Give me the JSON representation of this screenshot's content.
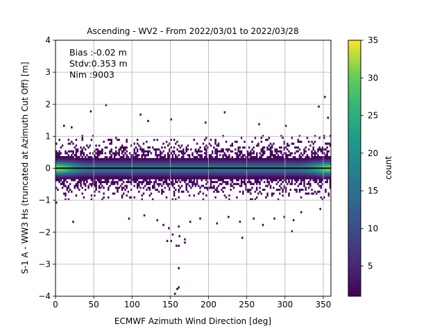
{
  "chart_data": {
    "type": "heatmap",
    "title": "Ascending - WV2 - From 2022/03/01 to 2022/03/28",
    "xlabel": "ECMWF Azimuth Wind Direction [deg]",
    "ylabel": "S-1 A - WW3 Hs (truncated at Azimuth Cut Off) [m]",
    "xlim": [
      0,
      360
    ],
    "ylim": [
      -4,
      4
    ],
    "x_ticks": [
      "0",
      "50",
      "100",
      "150",
      "200",
      "250",
      "300",
      "350"
    ],
    "y_ticks": [
      "−4",
      "−3",
      "−2",
      "−1",
      "0",
      "1",
      "2",
      "3",
      "4"
    ],
    "grid": true,
    "zero_line": 0,
    "annotations": [
      "Bias :-0.02 m",
      "Stdv:0.353 m",
      "Nim :9003"
    ],
    "colorbar": {
      "label": "count",
      "range": [
        1,
        35
      ],
      "ticks": [
        "5",
        "10",
        "15",
        "20",
        "25",
        "30",
        "35"
      ],
      "colormap": "viridis"
    },
    "density": {
      "description_free": true,
      "center_y": 0.0,
      "core_halfwidth_m": 0.35,
      "outer_halfwidth_m": 1.0,
      "peak_count": 35
    },
    "outliers": [
      [
        351,
        2.2
      ],
      [
        343,
        1.9
      ],
      [
        65,
        1.95
      ],
      [
        45,
        1.75
      ],
      [
        110,
        1.65
      ],
      [
        220,
        1.72
      ],
      [
        355,
        1.55
      ],
      [
        150,
        1.5
      ],
      [
        195,
        1.4
      ],
      [
        265,
        1.35
      ],
      [
        10,
        1.3
      ],
      [
        20,
        1.25
      ],
      [
        120,
        1.45
      ],
      [
        300,
        1.3
      ],
      [
        0,
        -1.1
      ],
      [
        22,
        -1.7
      ],
      [
        95,
        -1.6
      ],
      [
        115,
        -1.5
      ],
      [
        132,
        -1.65
      ],
      [
        140,
        -1.8
      ],
      [
        147,
        -1.9
      ],
      [
        160,
        -1.85
      ],
      [
        175,
        -1.7
      ],
      [
        188,
        -1.6
      ],
      [
        210,
        -1.75
      ],
      [
        225,
        -1.55
      ],
      [
        240,
        -1.7
      ],
      [
        258,
        -1.6
      ],
      [
        270,
        -1.8
      ],
      [
        285,
        -1.6
      ],
      [
        298,
        -1.55
      ],
      [
        310,
        -1.65
      ],
      [
        320,
        -1.4
      ],
      [
        345,
        -1.3
      ],
      [
        308,
        -2.0
      ],
      [
        152,
        -2.1
      ],
      [
        161,
        -2.15
      ],
      [
        145,
        -2.3
      ],
      [
        168,
        -2.35
      ],
      [
        243,
        -2.2
      ],
      [
        157,
        -2.45
      ],
      [
        150,
        -2.3
      ],
      [
        160,
        -2.45
      ],
      [
        168,
        -2.25
      ],
      [
        160,
        -3.15
      ],
      [
        160,
        -3.75
      ],
      [
        158,
        -3.8
      ],
      [
        155,
        -3.95
      ]
    ]
  }
}
